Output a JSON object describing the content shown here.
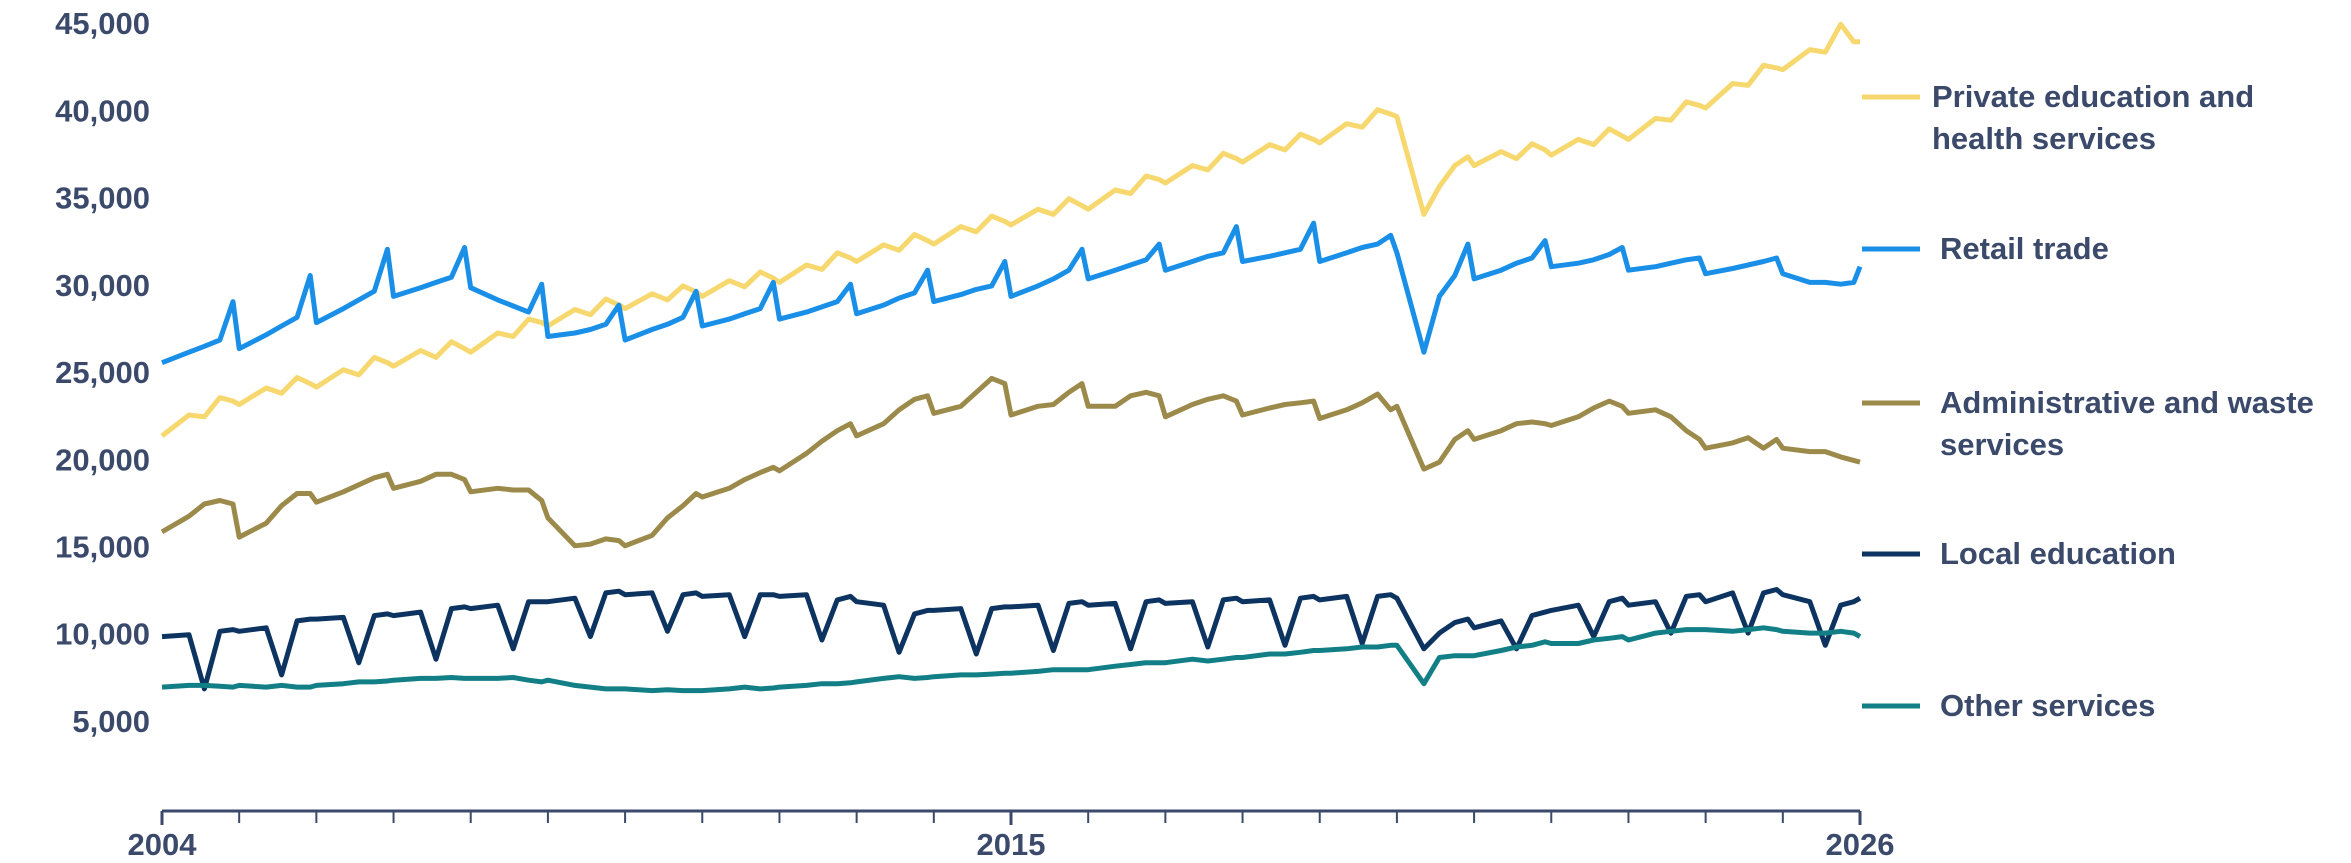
{
  "chart_data": {
    "type": "line",
    "x": [
      2004,
      2004.35,
      2004.55,
      2004.75,
      2004.92,
      2005,
      2005.35,
      2005.55,
      2005.75,
      2005.92,
      2006,
      2006.35,
      2006.55,
      2006.75,
      2006.92,
      2007,
      2007.35,
      2007.55,
      2007.75,
      2007.92,
      2008,
      2008.35,
      2008.55,
      2008.75,
      2008.92,
      2009,
      2009.35,
      2009.55,
      2009.75,
      2009.92,
      2010,
      2010.35,
      2010.55,
      2010.75,
      2010.92,
      2011,
      2011.35,
      2011.55,
      2011.75,
      2011.92,
      2012,
      2012.35,
      2012.55,
      2012.75,
      2012.92,
      2013,
      2013.35,
      2013.55,
      2013.75,
      2013.92,
      2014,
      2014.35,
      2014.55,
      2014.75,
      2014.92,
      2015,
      2015.35,
      2015.55,
      2015.75,
      2015.92,
      2016,
      2016.35,
      2016.55,
      2016.75,
      2016.92,
      2017,
      2017.35,
      2017.55,
      2017.75,
      2017.92,
      2018,
      2018.35,
      2018.55,
      2018.75,
      2018.92,
      2019,
      2019.35,
      2019.55,
      2019.75,
      2019.92,
      2020,
      2020.35,
      2020.55,
      2020.75,
      2020.92,
      2021,
      2021.35,
      2021.55,
      2021.75,
      2021.92,
      2022,
      2022.35,
      2022.55,
      2022.75,
      2022.92,
      2023,
      2023.35,
      2023.55,
      2023.75,
      2023.92,
      2024,
      2024.35,
      2024.55,
      2024.75,
      2024.92,
      2025,
      2025.35,
      2025.55,
      2025.75,
      2025.92,
      2026
    ],
    "series": [
      {
        "name": "Private education and health services",
        "color": "#f6d86f",
        "values": [
          21500,
          22700,
          22600,
          23700,
          23500,
          23300,
          24250,
          23950,
          24850,
          24500,
          24300,
          25300,
          25000,
          26000,
          25700,
          25500,
          26400,
          26000,
          26900,
          26500,
          26300,
          27400,
          27200,
          28200,
          28000,
          27800,
          28750,
          28450,
          29350,
          29000,
          28800,
          29650,
          29300,
          30100,
          29750,
          29500,
          30400,
          30050,
          30900,
          30550,
          30300,
          31300,
          31050,
          32000,
          31700,
          31500,
          32450,
          32150,
          33050,
          32700,
          32500,
          33500,
          33200,
          34100,
          33800,
          33600,
          34500,
          34200,
          35100,
          34700,
          34500,
          35600,
          35400,
          36400,
          36200,
          36000,
          37000,
          36750,
          37700,
          37400,
          37200,
          38200,
          37900,
          38800,
          38500,
          38300,
          39400,
          39200,
          40200,
          39950,
          39800,
          34200,
          35800,
          37000,
          37500,
          37000,
          37800,
          37400,
          38250,
          37900,
          37600,
          38500,
          38200,
          39100,
          38700,
          38500,
          39700,
          39600,
          40650,
          40450,
          40300,
          41700,
          41600,
          42750,
          42600,
          42500,
          43650,
          43500,
          45100,
          44100,
          44100
        ]
      },
      {
        "name": "Retail trade",
        "color": "#1a8fe8",
        "values": [
          25700,
          26300,
          26640,
          27000,
          29200,
          26500,
          27300,
          27800,
          28300,
          30700,
          28000,
          28800,
          29300,
          29800,
          32200,
          29500,
          30000,
          30300,
          30600,
          32300,
          30000,
          29300,
          28950,
          28600,
          30200,
          27200,
          27400,
          27600,
          27900,
          29000,
          27000,
          27600,
          27900,
          28300,
          29800,
          27800,
          28200,
          28500,
          28800,
          30300,
          28200,
          28600,
          28900,
          29200,
          30200,
          28500,
          29000,
          29400,
          29700,
          31000,
          29200,
          29600,
          29900,
          30100,
          31500,
          29500,
          30100,
          30500,
          31000,
          32200,
          30500,
          31000,
          31300,
          31600,
          32500,
          31000,
          31500,
          31800,
          32000,
          33500,
          31500,
          31800,
          32000,
          32200,
          33700,
          31500,
          32000,
          32300,
          32500,
          33000,
          32000,
          26300,
          29500,
          30700,
          32500,
          30500,
          31000,
          31400,
          31700,
          32700,
          31200,
          31400,
          31600,
          31900,
          32300,
          31000,
          31200,
          31400,
          31600,
          31700,
          30800,
          31100,
          31300,
          31500,
          31700,
          30800,
          30300,
          30300,
          30200,
          30300,
          31200
        ]
      },
      {
        "name": "Administrative and waste services",
        "color": "#9c8a4b",
        "values": [
          16000,
          16900,
          17600,
          17800,
          17600,
          15700,
          16500,
          17500,
          18200,
          18200,
          17700,
          18300,
          18700,
          19100,
          19300,
          18500,
          18900,
          19300,
          19300,
          19000,
          18300,
          18500,
          18400,
          18400,
          17800,
          16800,
          15200,
          15300,
          15600,
          15500,
          15200,
          15800,
          16800,
          17500,
          18200,
          18000,
          18500,
          19000,
          19400,
          19700,
          19500,
          20500,
          21200,
          21800,
          22200,
          21500,
          22200,
          23000,
          23600,
          23800,
          22800,
          23200,
          24000,
          24800,
          24500,
          22700,
          23200,
          23300,
          24000,
          24500,
          23200,
          23200,
          23800,
          24000,
          23800,
          22600,
          23300,
          23600,
          23800,
          23500,
          22700,
          23100,
          23300,
          23400,
          23500,
          22500,
          23000,
          23400,
          23900,
          23000,
          23200,
          19600,
          20000,
          21300,
          21800,
          21300,
          21800,
          22200,
          22300,
          22200,
          22100,
          22600,
          23100,
          23500,
          23200,
          22800,
          23000,
          22600,
          21800,
          21300,
          20800,
          21100,
          21400,
          20800,
          21300,
          20800,
          20600,
          20600,
          20300,
          20100,
          20000
        ]
      },
      {
        "name": "Local education",
        "color": "#0d3460",
        "values": [
          10000,
          10100,
          7000,
          10300,
          10400,
          10300,
          10500,
          7800,
          10900,
          11000,
          11000,
          11100,
          8500,
          11200,
          11300,
          11200,
          11400,
          8700,
          11600,
          11700,
          11600,
          11800,
          9300,
          12000,
          12000,
          12000,
          12200,
          10000,
          12500,
          12600,
          12400,
          12500,
          10300,
          12400,
          12500,
          12300,
          12400,
          10000,
          12400,
          12400,
          12300,
          12400,
          9800,
          12100,
          12300,
          12000,
          11800,
          9100,
          11300,
          11500,
          11500,
          11600,
          9000,
          11600,
          11700,
          11700,
          11800,
          9200,
          11900,
          12000,
          11800,
          11900,
          9300,
          12000,
          12100,
          11900,
          12000,
          9400,
          12100,
          12200,
          12000,
          12100,
          9500,
          12200,
          12300,
          12100,
          12300,
          9600,
          12300,
          12400,
          12200,
          9300,
          10200,
          10800,
          11000,
          10500,
          10900,
          9300,
          11200,
          11400,
          11500,
          11800,
          10000,
          12000,
          12200,
          11800,
          12000,
          10200,
          12300,
          12400,
          12000,
          12500,
          10200,
          12500,
          12700,
          12400,
          12000,
          9500,
          11800,
          12000,
          12200
        ]
      },
      {
        "name": "Other services",
        "color": "#127f86",
        "values": [
          7100,
          7200,
          7200,
          7150,
          7100,
          7200,
          7100,
          7200,
          7100,
          7100,
          7200,
          7300,
          7400,
          7400,
          7450,
          7500,
          7600,
          7600,
          7650,
          7600,
          7600,
          7600,
          7650,
          7500,
          7400,
          7500,
          7200,
          7100,
          7000,
          7000,
          7000,
          6900,
          6950,
          6900,
          6900,
          6900,
          7000,
          7100,
          7000,
          7050,
          7100,
          7200,
          7300,
          7300,
          7350,
          7400,
          7600,
          7700,
          7600,
          7650,
          7700,
          7800,
          7800,
          7850,
          7900,
          7900,
          8000,
          8100,
          8100,
          8100,
          8100,
          8300,
          8400,
          8500,
          8500,
          8500,
          8700,
          8600,
          8700,
          8800,
          8800,
          9000,
          9000,
          9100,
          9200,
          9200,
          9300,
          9400,
          9400,
          9500,
          9500,
          7300,
          8800,
          8900,
          8900,
          8900,
          9200,
          9400,
          9500,
          9700,
          9600,
          9600,
          9800,
          9900,
          10000,
          9800,
          10200,
          10300,
          10400,
          10400,
          10400,
          10300,
          10400,
          10500,
          10400,
          10300,
          10200,
          10200,
          10300,
          10200,
          10000
        ]
      }
    ],
    "xlim": [
      2004,
      2026
    ],
    "xticks": [
      2004,
      2015,
      2026
    ],
    "xminor_ticks": [
      2004,
      2005,
      2006,
      2007,
      2008,
      2009,
      2010,
      2011,
      2012,
      2013,
      2014,
      2015,
      2016,
      2017,
      2018,
      2019,
      2020,
      2021,
      2022,
      2023,
      2024,
      2025,
      2026
    ],
    "ylim": [
      0,
      45000
    ],
    "yticks": [
      {
        "value": 5000,
        "label": "5,000"
      },
      {
        "value": 10000,
        "label": "10,000"
      },
      {
        "value": 15000,
        "label": "15,000"
      },
      {
        "value": 20000,
        "label": "20,000"
      },
      {
        "value": 25000,
        "label": "25,000"
      },
      {
        "value": 30000,
        "label": "30,000"
      },
      {
        "value": 35000,
        "label": "35,000"
      },
      {
        "value": 40000,
        "label": "40,000"
      },
      {
        "value": 45000,
        "label": "45,000"
      }
    ],
    "grid": false,
    "legend": "right"
  }
}
